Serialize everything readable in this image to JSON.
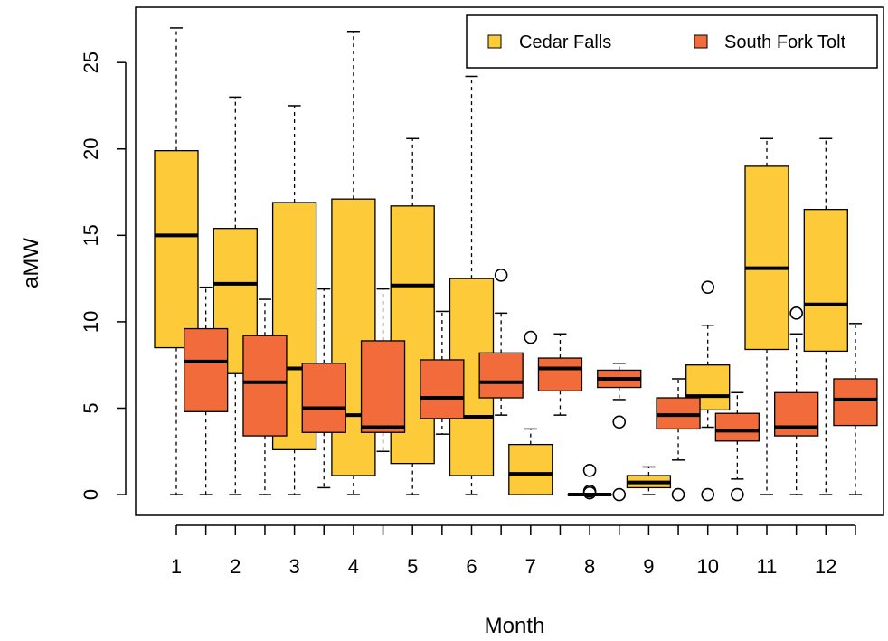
{
  "chart_data": {
    "type": "boxplot",
    "title": "",
    "xlabel": "Month",
    "ylabel": "aMW",
    "ylim": [
      -1.2,
      28.2
    ],
    "y_ticks": [
      0,
      5,
      10,
      15,
      20,
      25
    ],
    "categories": [
      "1",
      "2",
      "3",
      "4",
      "5",
      "6",
      "7",
      "8",
      "9",
      "10",
      "11",
      "12"
    ],
    "legend_position": "top-right",
    "series": [
      {
        "name": "Cedar Falls",
        "color": "#FDCB3A",
        "boxes": [
          {
            "min": 0,
            "q1": 8.5,
            "median": 15.0,
            "q3": 19.9,
            "max": 27.0,
            "outliers": []
          },
          {
            "min": 0,
            "q1": 7.0,
            "median": 12.2,
            "q3": 15.4,
            "max": 23.0,
            "outliers": []
          },
          {
            "min": 0,
            "q1": 2.6,
            "median": 7.3,
            "q3": 16.9,
            "max": 22.5,
            "outliers": []
          },
          {
            "min": 0,
            "q1": 1.1,
            "median": 4.6,
            "q3": 17.1,
            "max": 26.8,
            "outliers": []
          },
          {
            "min": 0,
            "q1": 1.8,
            "median": 12.1,
            "q3": 16.7,
            "max": 20.6,
            "outliers": []
          },
          {
            "min": 0,
            "q1": 1.1,
            "median": 4.5,
            "q3": 12.5,
            "max": 24.2,
            "outliers": []
          },
          {
            "min": 0,
            "q1": 0.0,
            "median": 1.2,
            "q3": 2.9,
            "max": 3.8,
            "outliers": [
              9.1
            ]
          },
          {
            "min": 0,
            "q1": 0.0,
            "median": 0.0,
            "q3": 0.0,
            "max": 0.0,
            "outliers": [
              1.4,
              0.2,
              0.1
            ]
          },
          {
            "min": 0,
            "q1": 0.4,
            "median": 0.7,
            "q3": 1.1,
            "max": 1.6,
            "outliers": []
          },
          {
            "min": 3.9,
            "q1": 4.9,
            "median": 5.7,
            "q3": 7.5,
            "max": 9.8,
            "outliers": [
              12.0,
              0.0
            ]
          },
          {
            "min": 0,
            "q1": 8.4,
            "median": 13.1,
            "q3": 19.0,
            "max": 20.6,
            "outliers": []
          },
          {
            "min": 0,
            "q1": 8.3,
            "median": 11.0,
            "q3": 16.5,
            "max": 20.6,
            "outliers": []
          }
        ]
      },
      {
        "name": "South Fork Tolt",
        "color": "#F26B3A",
        "boxes": [
          {
            "min": 0,
            "q1": 4.8,
            "median": 7.7,
            "q3": 9.6,
            "max": 12.0,
            "outliers": []
          },
          {
            "min": 0,
            "q1": 3.4,
            "median": 6.5,
            "q3": 9.2,
            "max": 11.3,
            "outliers": []
          },
          {
            "min": 0.4,
            "q1": 3.6,
            "median": 5.0,
            "q3": 7.6,
            "max": 11.9,
            "outliers": []
          },
          {
            "min": 2.5,
            "q1": 3.6,
            "median": 3.9,
            "q3": 8.9,
            "max": 11.9,
            "outliers": []
          },
          {
            "min": 3.5,
            "q1": 4.4,
            "median": 5.6,
            "q3": 7.8,
            "max": 10.6,
            "outliers": []
          },
          {
            "min": 4.6,
            "q1": 5.6,
            "median": 6.5,
            "q3": 8.2,
            "max": 10.5,
            "outliers": [
              12.7
            ]
          },
          {
            "min": 4.6,
            "q1": 6.0,
            "median": 7.3,
            "q3": 7.9,
            "max": 9.3,
            "outliers": []
          },
          {
            "min": 5.5,
            "q1": 6.2,
            "median": 6.7,
            "q3": 7.2,
            "max": 7.6,
            "outliers": [
              4.2,
              0.0
            ]
          },
          {
            "min": 2.0,
            "q1": 3.8,
            "median": 4.6,
            "q3": 5.6,
            "max": 6.7,
            "outliers": [
              0.0
            ]
          },
          {
            "min": 0.9,
            "q1": 3.1,
            "median": 3.7,
            "q3": 4.7,
            "max": 5.9,
            "outliers": [
              0.0
            ]
          },
          {
            "min": 0,
            "q1": 3.4,
            "median": 3.9,
            "q3": 5.9,
            "max": 9.3,
            "outliers": [
              10.5
            ]
          },
          {
            "min": 0,
            "q1": 4.0,
            "median": 5.5,
            "q3": 6.7,
            "max": 9.9,
            "outliers": []
          }
        ]
      }
    ]
  }
}
